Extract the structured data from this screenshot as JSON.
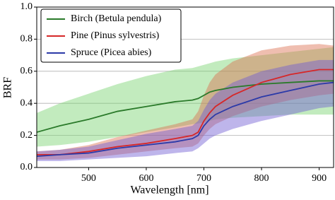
{
  "chart_data": {
    "type": "line-band",
    "xlabel": "Wavelength [nm]",
    "ylabel": "BRF",
    "x": [
      410,
      450,
      500,
      550,
      600,
      650,
      680,
      690,
      700,
      710,
      720,
      750,
      800,
      850,
      900,
      925
    ],
    "series": [
      {
        "name": "Birch (Betula pendula)",
        "color": "#2a7a2a",
        "band_color": "rgba(120,210,110,0.45)",
        "values": [
          0.22,
          0.26,
          0.3,
          0.35,
          0.38,
          0.41,
          0.42,
          0.43,
          0.45,
          0.47,
          0.48,
          0.5,
          0.52,
          0.53,
          0.54,
          0.54
        ],
        "lower": [
          0.13,
          0.14,
          0.16,
          0.19,
          0.22,
          0.25,
          0.27,
          0.275,
          0.28,
          0.29,
          0.3,
          0.31,
          0.32,
          0.33,
          0.33,
          0.33
        ],
        "upper": [
          0.34,
          0.4,
          0.46,
          0.52,
          0.57,
          0.61,
          0.62,
          0.63,
          0.64,
          0.65,
          0.66,
          0.68,
          0.7,
          0.72,
          0.74,
          0.75
        ]
      },
      {
        "name": "Pine (Pinus sylvestris)",
        "color": "#d62728",
        "band_color": "rgba(220,110,80,0.45)",
        "values": [
          0.08,
          0.08,
          0.1,
          0.13,
          0.15,
          0.18,
          0.2,
          0.22,
          0.29,
          0.34,
          0.38,
          0.45,
          0.53,
          0.58,
          0.61,
          0.61
        ],
        "lower": [
          0.05,
          0.05,
          0.06,
          0.08,
          0.1,
          0.12,
          0.13,
          0.15,
          0.2,
          0.24,
          0.27,
          0.32,
          0.38,
          0.42,
          0.45,
          0.46
        ],
        "upper": [
          0.1,
          0.11,
          0.14,
          0.19,
          0.23,
          0.27,
          0.3,
          0.35,
          0.45,
          0.53,
          0.58,
          0.66,
          0.73,
          0.76,
          0.77,
          0.76
        ]
      },
      {
        "name": "Spruce (Picea abies)",
        "color": "#2c3aa8",
        "band_color": "rgba(110,90,210,0.45)",
        "values": [
          0.07,
          0.08,
          0.09,
          0.12,
          0.14,
          0.16,
          0.18,
          0.2,
          0.26,
          0.3,
          0.33,
          0.38,
          0.44,
          0.48,
          0.52,
          0.53
        ],
        "lower": [
          0.04,
          0.04,
          0.05,
          0.06,
          0.07,
          0.09,
          0.1,
          0.12,
          0.15,
          0.18,
          0.2,
          0.24,
          0.29,
          0.33,
          0.37,
          0.38
        ],
        "upper": [
          0.1,
          0.11,
          0.13,
          0.17,
          0.21,
          0.24,
          0.26,
          0.29,
          0.36,
          0.42,
          0.46,
          0.53,
          0.6,
          0.64,
          0.67,
          0.67
        ]
      }
    ],
    "xlim": [
      410,
      925
    ],
    "xticks": [
      500,
      600,
      700,
      800,
      900
    ],
    "ylim": [
      0,
      1
    ],
    "yticks": [
      {
        "value": 0,
        "label": "0.0"
      },
      0.2,
      0.4,
      0.6,
      0.8,
      {
        "value": 1,
        "label": "1.0"
      }
    ],
    "grid": true,
    "legend": "upper left"
  }
}
